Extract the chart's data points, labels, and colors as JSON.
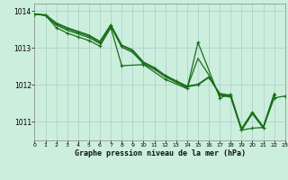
{
  "title": "Graphe pression niveau de la mer (hPa)",
  "background_color": "#cceedd",
  "grid_color": "#aacccc",
  "line_color": "#1a6e1a",
  "marker_color": "#1a6e1a",
  "x_min": 0,
  "x_max": 23,
  "y_min": 1010.5,
  "y_max": 1014.2,
  "yticks": [
    1011,
    1012,
    1013,
    1014
  ],
  "xticks": [
    0,
    1,
    2,
    3,
    4,
    5,
    6,
    7,
    8,
    9,
    10,
    11,
    12,
    13,
    14,
    15,
    16,
    17,
    18,
    19,
    20,
    21,
    22,
    23
  ],
  "series": [
    {
      "x": [
        0,
        1,
        2,
        3,
        4,
        5,
        6,
        7,
        8,
        9,
        10,
        11,
        12,
        13,
        14,
        15,
        16,
        17,
        18,
        19,
        20,
        21,
        22
      ],
      "y": [
        1013.92,
        1013.9,
        1013.68,
        1013.55,
        1013.45,
        1013.35,
        1013.18,
        1013.63,
        1013.08,
        1012.95,
        1012.62,
        1012.47,
        1012.26,
        1012.11,
        1011.97,
        1012.02,
        1012.22,
        1011.77,
        1011.72,
        1010.82,
        1011.27,
        1010.87,
        1011.77
      ],
      "marker": false,
      "linewidth": 0.9
    },
    {
      "x": [
        0,
        1,
        2,
        3,
        4,
        5,
        6,
        7,
        8,
        9,
        10,
        11,
        12,
        13,
        14,
        15,
        16,
        17,
        18,
        19,
        20,
        21,
        22
      ],
      "y": [
        1013.92,
        1013.88,
        1013.62,
        1013.48,
        1013.38,
        1013.28,
        1013.12,
        1013.58,
        1013.02,
        1012.88,
        1012.57,
        1012.42,
        1012.22,
        1012.07,
        1011.92,
        1012.72,
        1012.27,
        1011.72,
        1011.67,
        1010.77,
        1011.22,
        1010.83,
        1011.72
      ],
      "marker": false,
      "linewidth": 0.9
    },
    {
      "x": [
        0,
        1,
        2,
        3,
        4,
        5,
        6,
        7,
        8,
        9,
        10,
        11,
        12,
        13,
        14,
        15,
        16,
        17,
        18,
        19,
        20,
        21,
        22
      ],
      "y": [
        1013.92,
        1013.88,
        1013.65,
        1013.52,
        1013.42,
        1013.32,
        1013.15,
        1013.62,
        1013.06,
        1012.92,
        1012.6,
        1012.45,
        1012.25,
        1012.1,
        1011.95,
        1012.0,
        1012.2,
        1011.75,
        1011.7,
        1010.8,
        1011.25,
        1010.85,
        1011.75
      ],
      "marker": true,
      "linewidth": 0.9
    },
    {
      "x": [
        0,
        1,
        2,
        3,
        4,
        5,
        6,
        7,
        8,
        10,
        12,
        14,
        15,
        17,
        18,
        19,
        20,
        21,
        22,
        23
      ],
      "y": [
        1013.92,
        1013.88,
        1013.55,
        1013.4,
        1013.3,
        1013.2,
        1013.05,
        1013.55,
        1012.52,
        1012.55,
        1012.15,
        1011.9,
        1013.15,
        1011.65,
        1011.75,
        1010.78,
        1010.83,
        1010.85,
        1011.65,
        1011.7
      ],
      "marker": true,
      "linewidth": 0.9
    }
  ]
}
